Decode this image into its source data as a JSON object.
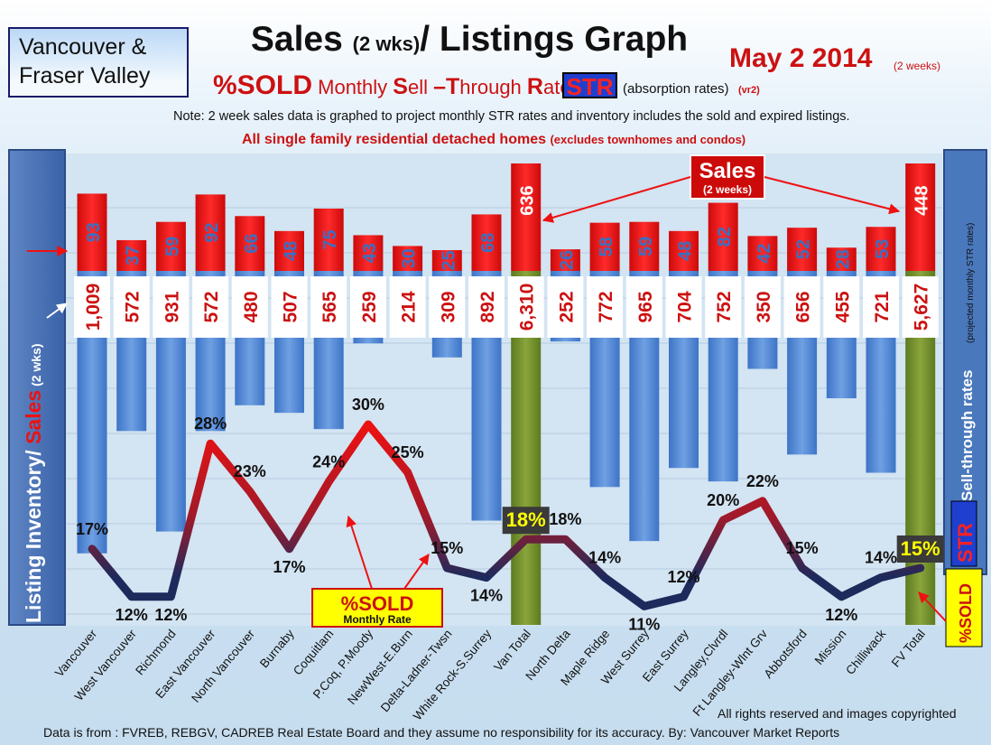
{
  "header": {
    "region": "Vancouver & Fraser Valley",
    "title_main": "Sales ",
    "title_small": "(2 wks)",
    "title_end": "/ Listings Graph",
    "date": "May 2 2014",
    "date_note": "(2 weeks)",
    "sub_pct": "%SOLD",
    "sub_a": " Monthly ",
    "sub_S": "S",
    "sub_b": "ell ",
    "sub_T": "–T",
    "sub_c": "hrough ",
    "sub_R": "R",
    "sub_d": "ates",
    "str_badge": "STR",
    "str_note": "(absorption rates)",
    "str_version": "(vr2)",
    "note": "Note: 2 week sales data is graphed to project monthly STR rates and inventory includes the sold and expired listings.",
    "scope": "All single family residential detached homes ",
    "scope_small": "(excludes townhomes and condos)"
  },
  "left_axis": {
    "inventory_label": "Listing Inventory/ ",
    "sales_label": "Sales",
    "sales_suffix": " (2 wks)"
  },
  "right_axis": {
    "str_label": "Sell-through rates",
    "str_note": "(projected monthly STR rates)",
    "str_badge": "STR",
    "pct_badge": "%SOLD"
  },
  "annotations": {
    "sales_title": "Sales",
    "sales_sub": "(2 weeks)",
    "sold_title": "%SOLD",
    "sold_sub": "Monthly Rate"
  },
  "footer": {
    "rights": "All rights reserved and  images copyrighted",
    "data_source": "Data is  from : FVREB, REBGV, CADREB Real Estate Board and they assume  no responsibility  for its accuracy. By: Vancouver Market Reports"
  },
  "colors": {
    "sales_bar": "#e31212",
    "inventory_bar": "#4f87d3",
    "total_bar": "#6f8c2a",
    "line_high": "#e81111",
    "line_low": "#1c2a5c"
  },
  "chart_data": {
    "type": "bar",
    "categories": [
      "Vancouver",
      "West Vancouver",
      "Richmond",
      "East Vancouver",
      "North Vancouver",
      "Burnaby",
      "Coquitlam",
      "P.Coq, P.Moody",
      "NewWest-E.Burn",
      "Delta-Ladner-Twsn",
      "White Rock-S.Surrey",
      "Van Total",
      "North Delta",
      "Maple Ridge",
      "West Surrey",
      "East Surrey",
      "Langley,Clvrdl",
      "Ft Langley-Wlnt Grv",
      "Abbotsford",
      "Mission",
      "Chilliwack",
      "FV Total"
    ],
    "sales": [
      93,
      37,
      59,
      92,
      66,
      48,
      75,
      43,
      30,
      25,
      68,
      636,
      26,
      58,
      59,
      48,
      82,
      42,
      52,
      28,
      53,
      448
    ],
    "inventory": [
      1009,
      572,
      931,
      572,
      480,
      507,
      565,
      259,
      214,
      309,
      892,
      6310,
      252,
      772,
      965,
      704,
      752,
      350,
      656,
      455,
      721,
      5627
    ],
    "sales_labels": [
      "93",
      "37",
      "59",
      "92",
      "66",
      "48",
      "75",
      "43",
      "30",
      "25",
      "68",
      "636",
      "26",
      "58",
      "59",
      "48",
      "82",
      "42",
      "52",
      "28",
      "53",
      "448"
    ],
    "inventory_labels": [
      "1,009",
      "572",
      "931",
      "572",
      "480",
      "507",
      "565",
      "259",
      "214",
      "309",
      "892",
      "6,310",
      "252",
      "772",
      "965",
      "704",
      "752",
      "350",
      "656",
      "455",
      "721",
      "5,627"
    ],
    "pct_sold": [
      17,
      12,
      12,
      28,
      23,
      17,
      24,
      30,
      25,
      15,
      14,
      18,
      18,
      14,
      11,
      12,
      20,
      22,
      15,
      12,
      14,
      15
    ],
    "pct_labels": [
      "17%",
      "12%",
      "12%",
      "28%",
      "23%",
      "17%",
      "24%",
      "30%",
      "25%",
      "15%",
      "14%",
      "18%",
      "18%",
      "14%",
      "11%",
      "12%",
      "20%",
      "22%",
      "15%",
      "12%",
      "14%",
      "15%"
    ],
    "total_categories": [
      "Van Total",
      "FV Total"
    ],
    "legend_placement": "none",
    "grid": true
  }
}
